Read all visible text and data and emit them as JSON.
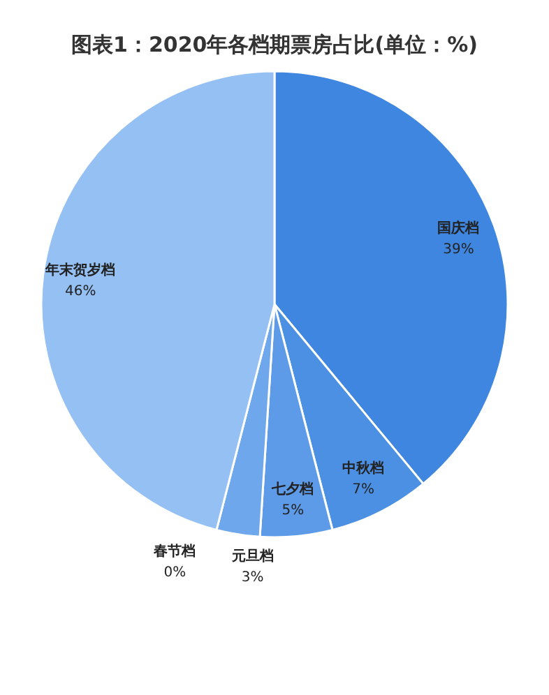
{
  "chart_data": {
    "type": "pie",
    "title": "图表1：2020年各档期票房占比(单位：%)",
    "categories": [
      "国庆档",
      "中秋档",
      "七夕档",
      "元旦档",
      "春节档",
      "年末贺岁档"
    ],
    "values": [
      39,
      7,
      5,
      3,
      0,
      46
    ],
    "colors": [
      "#3e86e0",
      "#4c90e4",
      "#5d9be8",
      "#6ea7eb",
      "#80b2ef",
      "#94c0f4"
    ],
    "value_labels": [
      "39%",
      "7%",
      "5%",
      "3%",
      "0%",
      "46%"
    ],
    "legend": false
  }
}
